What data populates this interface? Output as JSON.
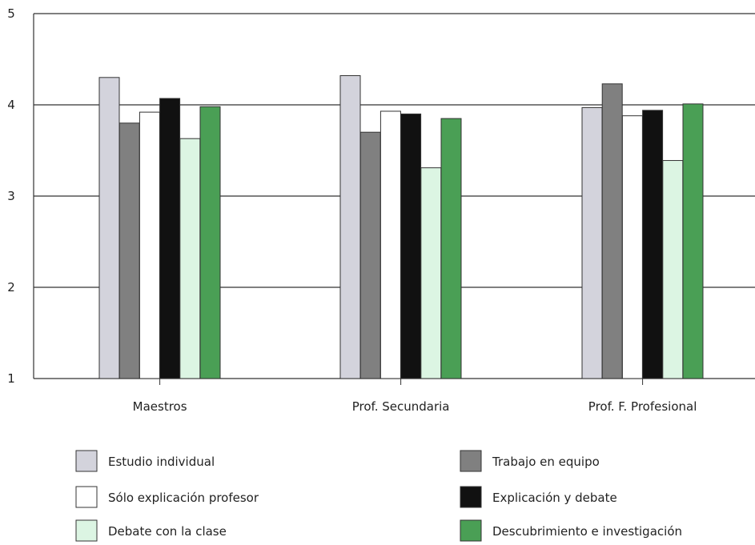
{
  "chart_data": {
    "type": "bar",
    "title": "",
    "xlabel": "",
    "ylabel": "",
    "ylim": [
      1,
      5
    ],
    "yticks": [
      1,
      2,
      3,
      4,
      5
    ],
    "grid": true,
    "legend_position": "bottom",
    "categories": [
      "Maestros",
      "Prof. Secundaria",
      "Prof. F. Profesional"
    ],
    "series": [
      {
        "name": "Estudio individual",
        "color": "#d3d3dc",
        "values": [
          4.3,
          4.32,
          3.97
        ]
      },
      {
        "name": "Trabajo en equipo",
        "color": "#808080",
        "values": [
          3.8,
          3.7,
          4.23
        ]
      },
      {
        "name": "Sólo explicación profesor",
        "color": "#ffffff",
        "values": [
          3.92,
          3.93,
          3.88
        ]
      },
      {
        "name": "Explicación y debate",
        "color": "#111111",
        "values": [
          4.07,
          3.9,
          3.94
        ]
      },
      {
        "name": "Debate con la clase",
        "color": "#dcf5e3",
        "values": [
          3.63,
          3.31,
          3.39
        ]
      },
      {
        "name": "Descubrimiento e investigación",
        "color": "#4a9f55",
        "values": [
          3.98,
          3.85,
          4.01
        ]
      }
    ]
  }
}
